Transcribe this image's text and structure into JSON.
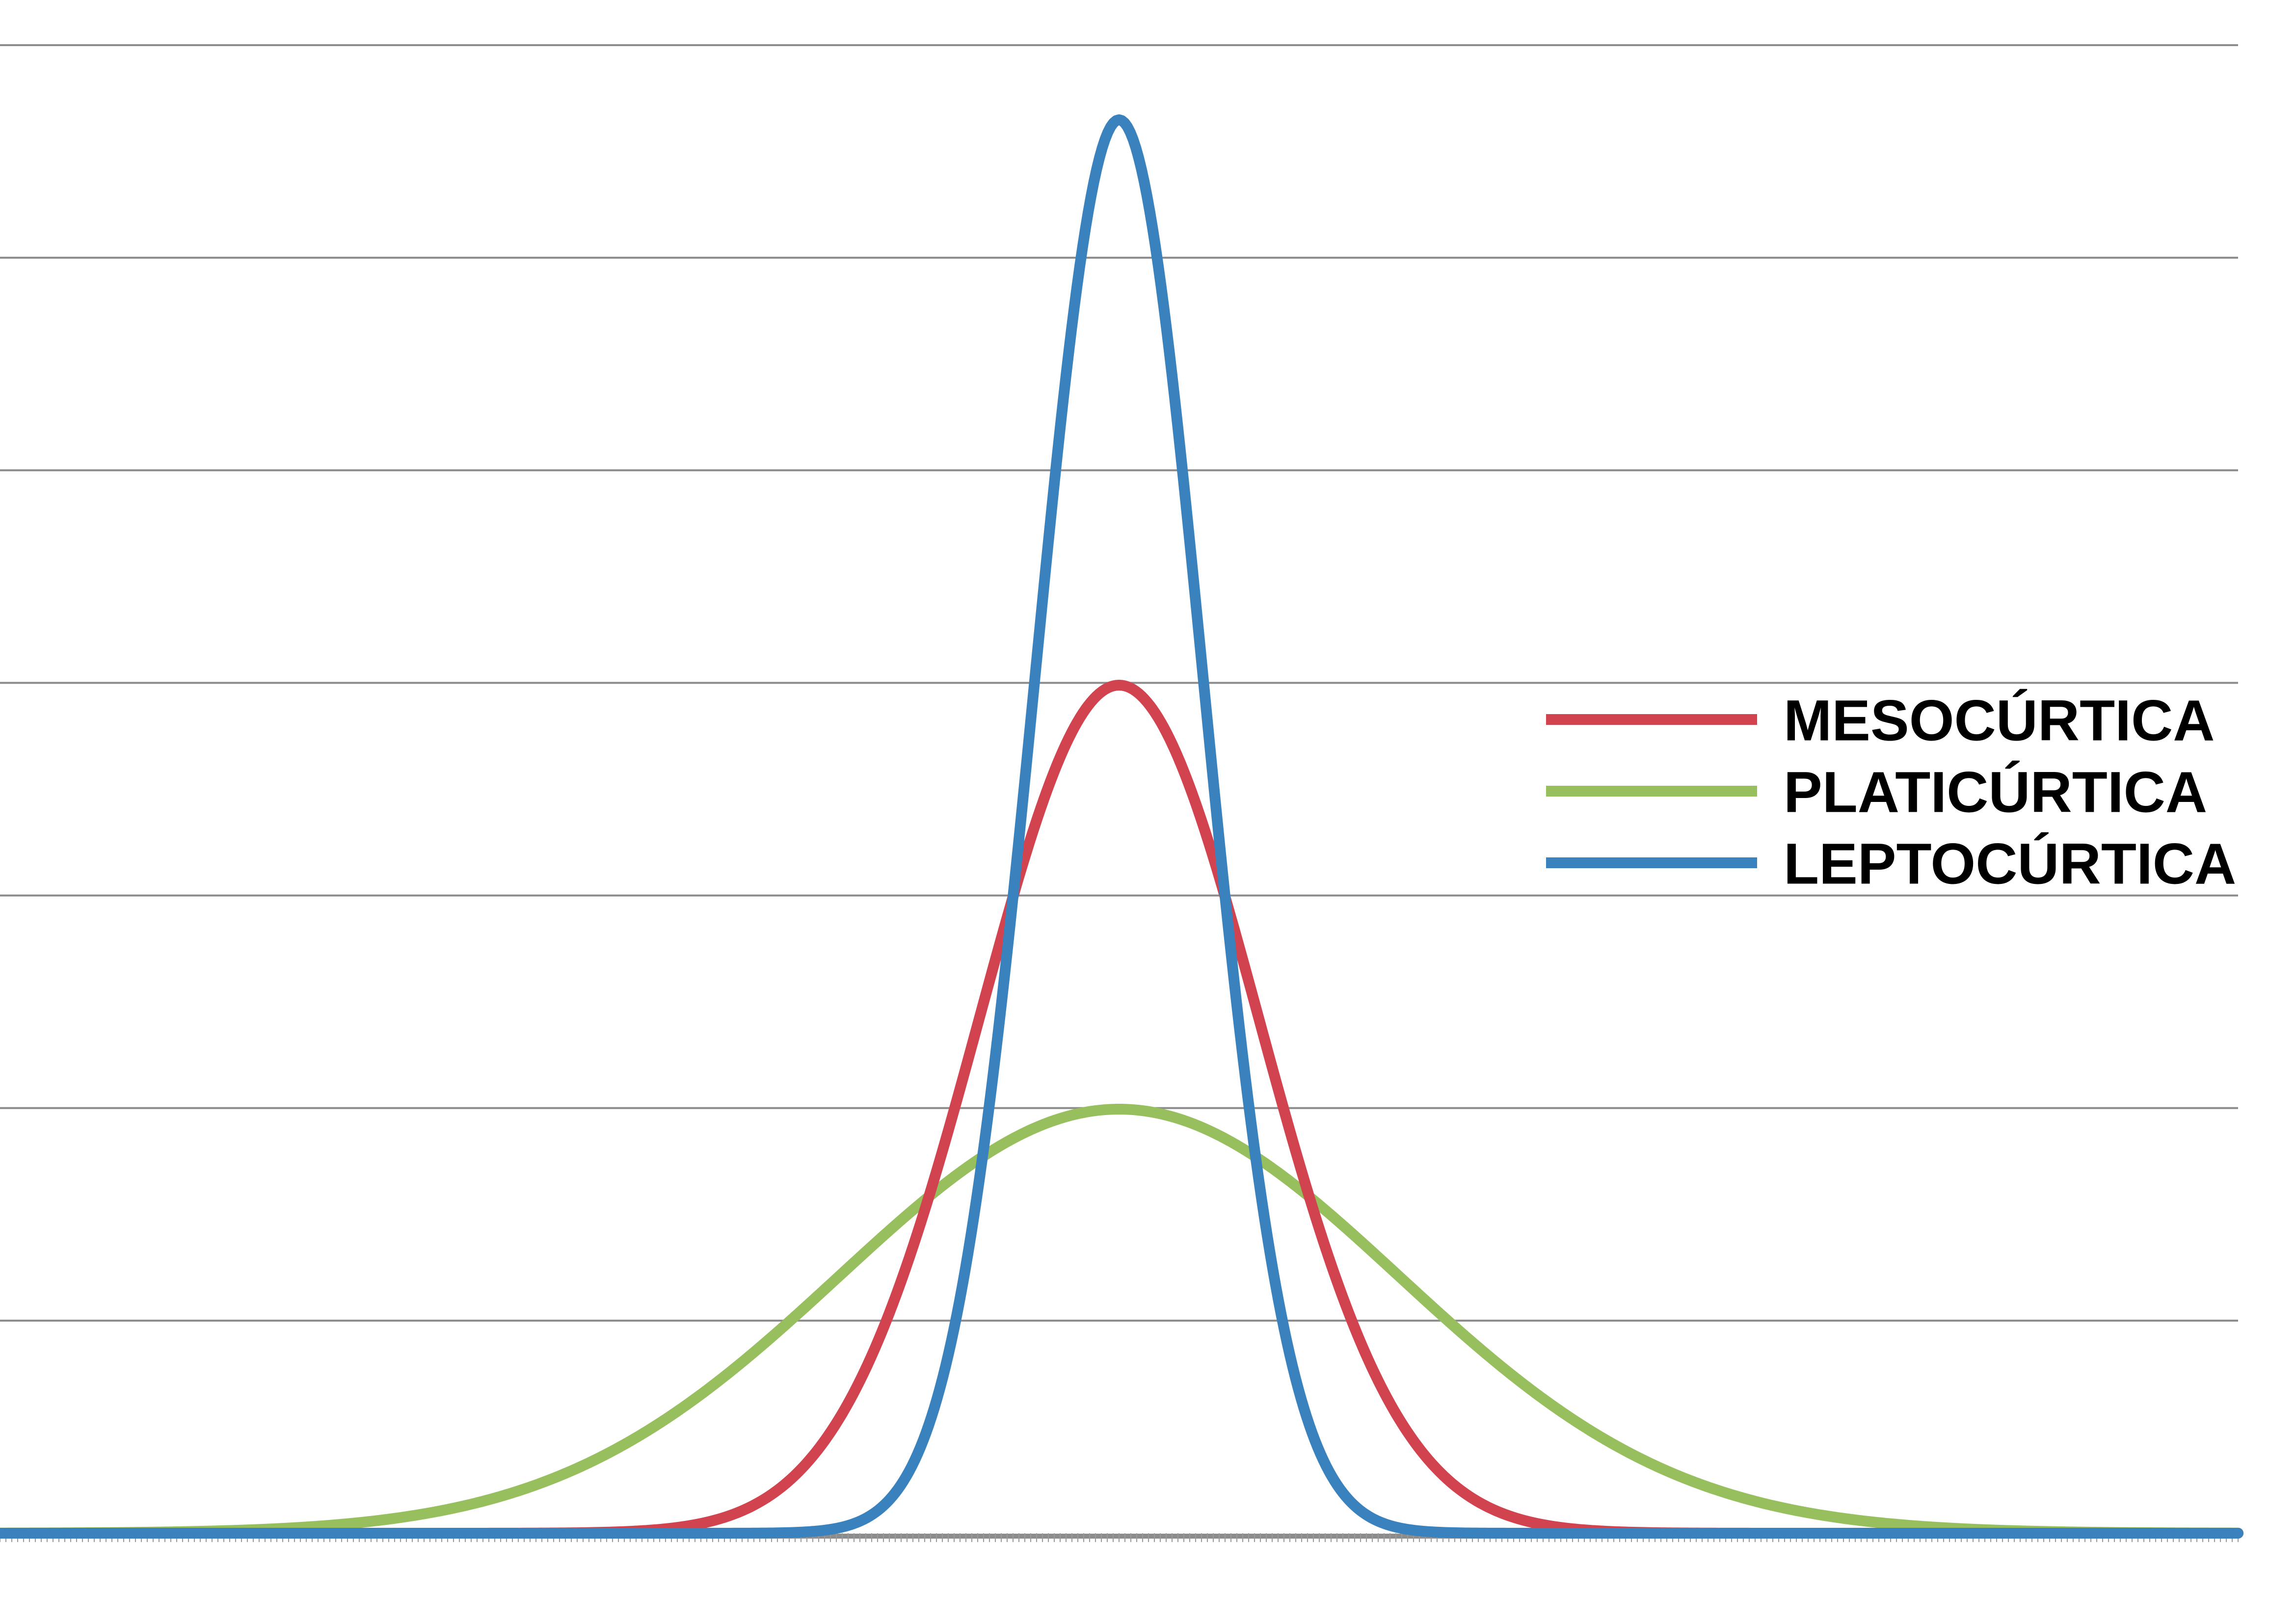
{
  "chart_data": {
    "type": "line",
    "title": "",
    "xlabel": "",
    "ylabel": "",
    "xlim": [
      -4.0,
      4.0
    ],
    "ylim": [
      0.0,
      1.4
    ],
    "grid": true,
    "gridline_values": [
      0.2,
      0.4,
      0.6,
      0.8,
      1.0,
      1.2,
      1.4
    ],
    "legend_position": "right",
    "series": [
      {
        "name": "MESOCÚRTICA",
        "color": "#d0434f",
        "mean": 0.0,
        "std": 0.5,
        "x": [
          -4.0,
          -3.0,
          -2.5,
          -2.0,
          -1.5,
          -1.2,
          -1.0,
          -0.8,
          -0.6,
          -0.4,
          -0.2,
          0.0,
          0.2,
          0.4,
          0.6,
          0.8,
          1.0,
          1.2,
          1.5,
          2.0,
          2.5,
          3.0,
          4.0
        ],
        "y": [
          0.0,
          0.0,
          0.0,
          0.0,
          0.009,
          0.045,
          0.108,
          0.222,
          0.388,
          0.579,
          0.737,
          0.798,
          0.737,
          0.579,
          0.388,
          0.222,
          0.108,
          0.045,
          0.009,
          0.0,
          0.0,
          0.0,
          0.0
        ]
      },
      {
        "name": "PLATICÚRTICA",
        "color": "#97bf5e",
        "mean": 0.0,
        "std": 1.0,
        "x": [
          -4.0,
          -3.0,
          -2.5,
          -2.0,
          -1.5,
          -1.2,
          -1.0,
          -0.8,
          -0.6,
          -0.4,
          -0.2,
          0.0,
          0.2,
          0.4,
          0.6,
          0.8,
          1.0,
          1.2,
          1.5,
          2.0,
          2.5,
          3.0,
          4.0
        ],
        "y": [
          0.0,
          0.004,
          0.018,
          0.054,
          0.13,
          0.194,
          0.242,
          0.29,
          0.333,
          0.368,
          0.391,
          0.399,
          0.391,
          0.368,
          0.333,
          0.29,
          0.242,
          0.194,
          0.13,
          0.054,
          0.018,
          0.004,
          0.0
        ]
      },
      {
        "name": "LEPTOCÚRTICA",
        "color": "#3a82bd",
        "mean": 0.0,
        "std": 0.3,
        "x": [
          -4.0,
          -2.0,
          -1.2,
          -1.0,
          -0.8,
          -0.6,
          -0.4,
          -0.2,
          -0.1,
          0.0,
          0.1,
          0.2,
          0.4,
          0.6,
          0.8,
          1.0,
          1.2,
          2.0,
          4.0
        ],
        "y": [
          0.0,
          0.0,
          0.0,
          0.005,
          0.038,
          0.18,
          0.547,
          1.065,
          1.261,
          1.33,
          1.261,
          1.065,
          0.547,
          0.18,
          0.038,
          0.005,
          0.0,
          0.0,
          0.0
        ]
      }
    ]
  }
}
